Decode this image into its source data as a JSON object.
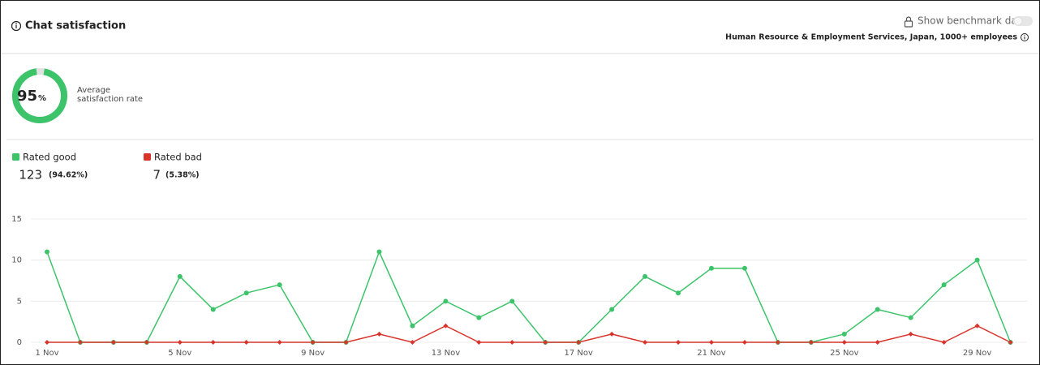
{
  "header": {
    "title": "Chat satisfaction",
    "benchmark_toggle": "Show benchmark data",
    "benchmark_context": "Human Resource & Employment Services, Japan, 1000+ employees"
  },
  "summary": {
    "value": 95,
    "unit": "%",
    "label_lines": [
      "Average",
      "satisfaction rate"
    ]
  },
  "chart_data": {
    "type": "line",
    "categories": [
      "1 Nov",
      null,
      null,
      null,
      "5 Nov",
      null,
      null,
      null,
      "9 Nov",
      null,
      null,
      null,
      "13 Nov",
      null,
      null,
      null,
      "17 Nov",
      null,
      null,
      null,
      "21 Nov",
      null,
      null,
      null,
      "25 Nov",
      null,
      null,
      null,
      "29 Nov",
      null
    ],
    "series": [
      {
        "name": "Rated good",
        "color": "#3dc46b",
        "total": 123,
        "share_label": "(94.62%)",
        "values": [
          11,
          0,
          0,
          0,
          8,
          4,
          6,
          7,
          0,
          0,
          11,
          2,
          5,
          3,
          5,
          0,
          0,
          4,
          8,
          6,
          9,
          9,
          0,
          0,
          1,
          4,
          3,
          7,
          10,
          0
        ]
      },
      {
        "name": "Rated bad",
        "color": "#d9342b",
        "total": 7,
        "share_label": "(5.38%)",
        "values": [
          0,
          0,
          0,
          0,
          0,
          0,
          0,
          0,
          0,
          0,
          1,
          0,
          2,
          0,
          0,
          0,
          0,
          1,
          0,
          0,
          0,
          0,
          0,
          0,
          0,
          0,
          1,
          0,
          2,
          0
        ]
      }
    ],
    "ylim": [
      0,
      15
    ],
    "yticks": [
      0,
      5,
      10,
      15
    ],
    "grid": true
  }
}
